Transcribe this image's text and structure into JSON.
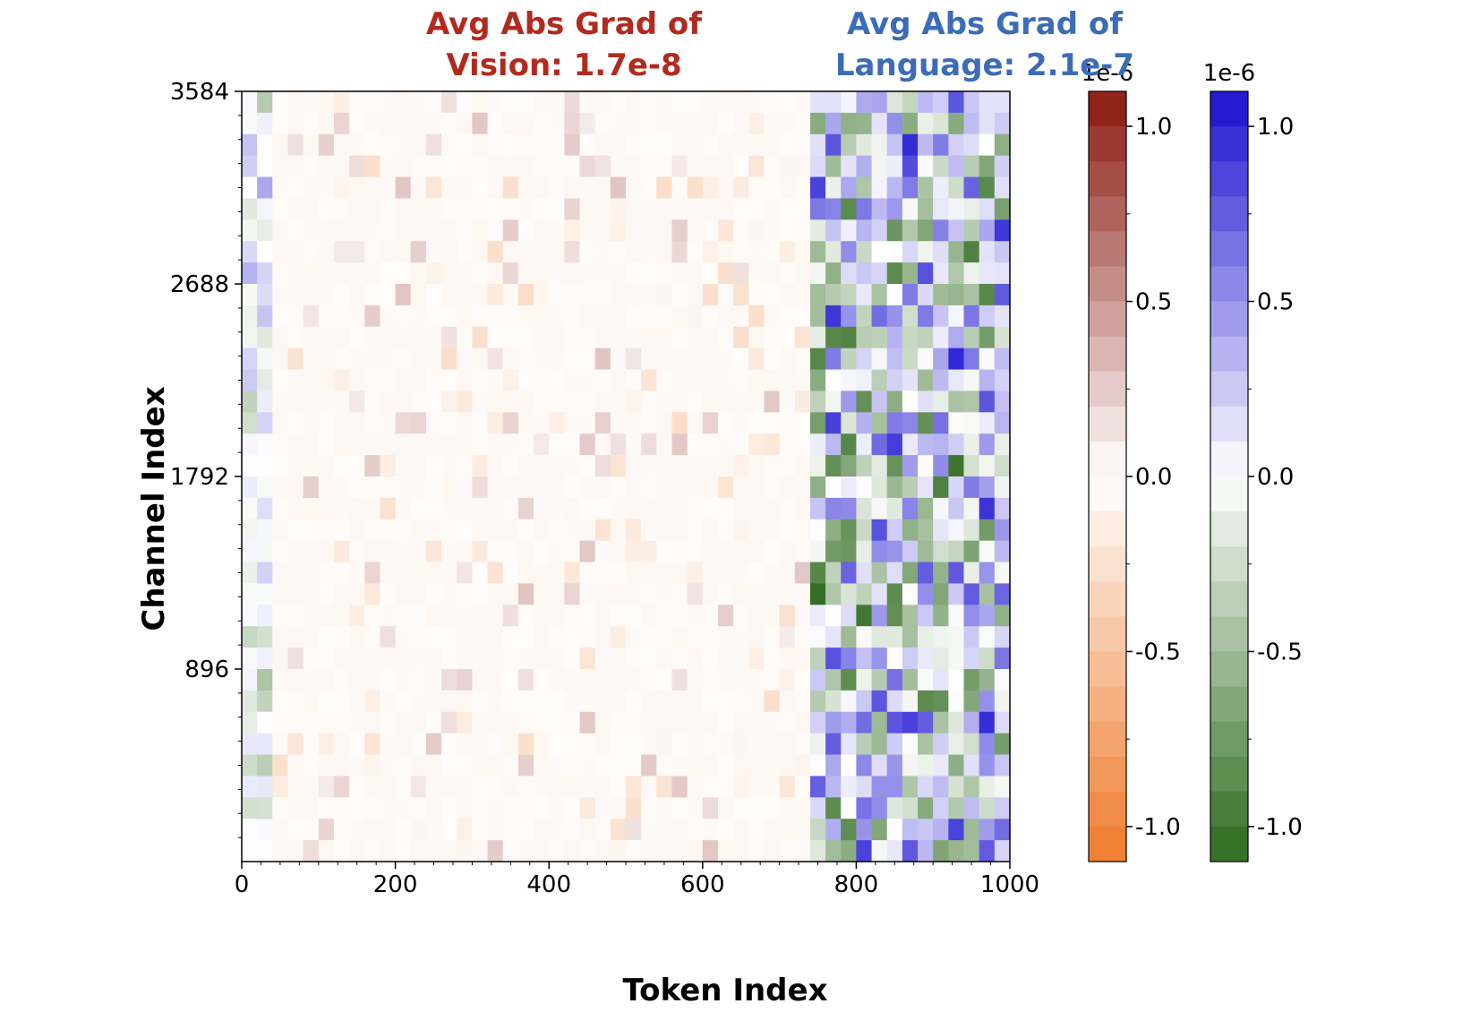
{
  "chart_data": {
    "type": "heatmap",
    "xlabel": "Token Index",
    "ylabel": "Channel Index",
    "xlim": [
      0,
      1000
    ],
    "ylim": [
      0,
      3584
    ],
    "x_ticks": [
      "0",
      "200",
      "400",
      "600",
      "800",
      "1000"
    ],
    "x_tick_values": [
      0,
      200,
      400,
      600,
      800,
      1000
    ],
    "y_ticks": [
      "896",
      "1792",
      "2688",
      "3584"
    ],
    "y_tick_values": [
      896,
      1792,
      2688,
      3584
    ],
    "grid": false,
    "regions": [
      {
        "name": "Vision",
        "x_range": [
          50,
          750
        ],
        "colormap": "orange-white-red"
      },
      {
        "name": "Language",
        "x_range": [
          750,
          1000
        ],
        "colormap": "green-white-blue"
      }
    ],
    "annotations": {
      "vision": {
        "line1": "Avg Abs Grad of",
        "line2": "Vision: 1.7e-8",
        "color": "#B22A1E"
      },
      "language": {
        "line1": "Avg Abs Grad of",
        "line2": "Language: 2.1e-7",
        "color": "#3C6CB7"
      }
    },
    "colorbars": [
      {
        "name": "vision",
        "scale_label": "1e-6",
        "range": [
          -1.1,
          1.1
        ],
        "ticks": [
          "1.0",
          "0.5",
          "0.0",
          "-0.5",
          "-1.0"
        ],
        "tick_values": [
          1.0,
          0.5,
          0.0,
          -0.5,
          -1.0
        ],
        "low_color": "#EE7A2A",
        "mid_color": "#FFFFFF",
        "high_color": "#8B1A10"
      },
      {
        "name": "language",
        "scale_label": "1e-6",
        "range": [
          -1.1,
          1.1
        ],
        "ticks": [
          "1.0",
          "0.5",
          "0.0",
          "-0.5",
          "-1.0"
        ],
        "tick_values": [
          1.0,
          0.5,
          0.0,
          -0.5,
          -1.0
        ],
        "low_color": "#2E6A1E",
        "mid_color": "#FFFFFF",
        "high_color": "#1A10D0"
      }
    ],
    "grid_cells": {
      "columns": 50,
      "rows": 36
    }
  }
}
